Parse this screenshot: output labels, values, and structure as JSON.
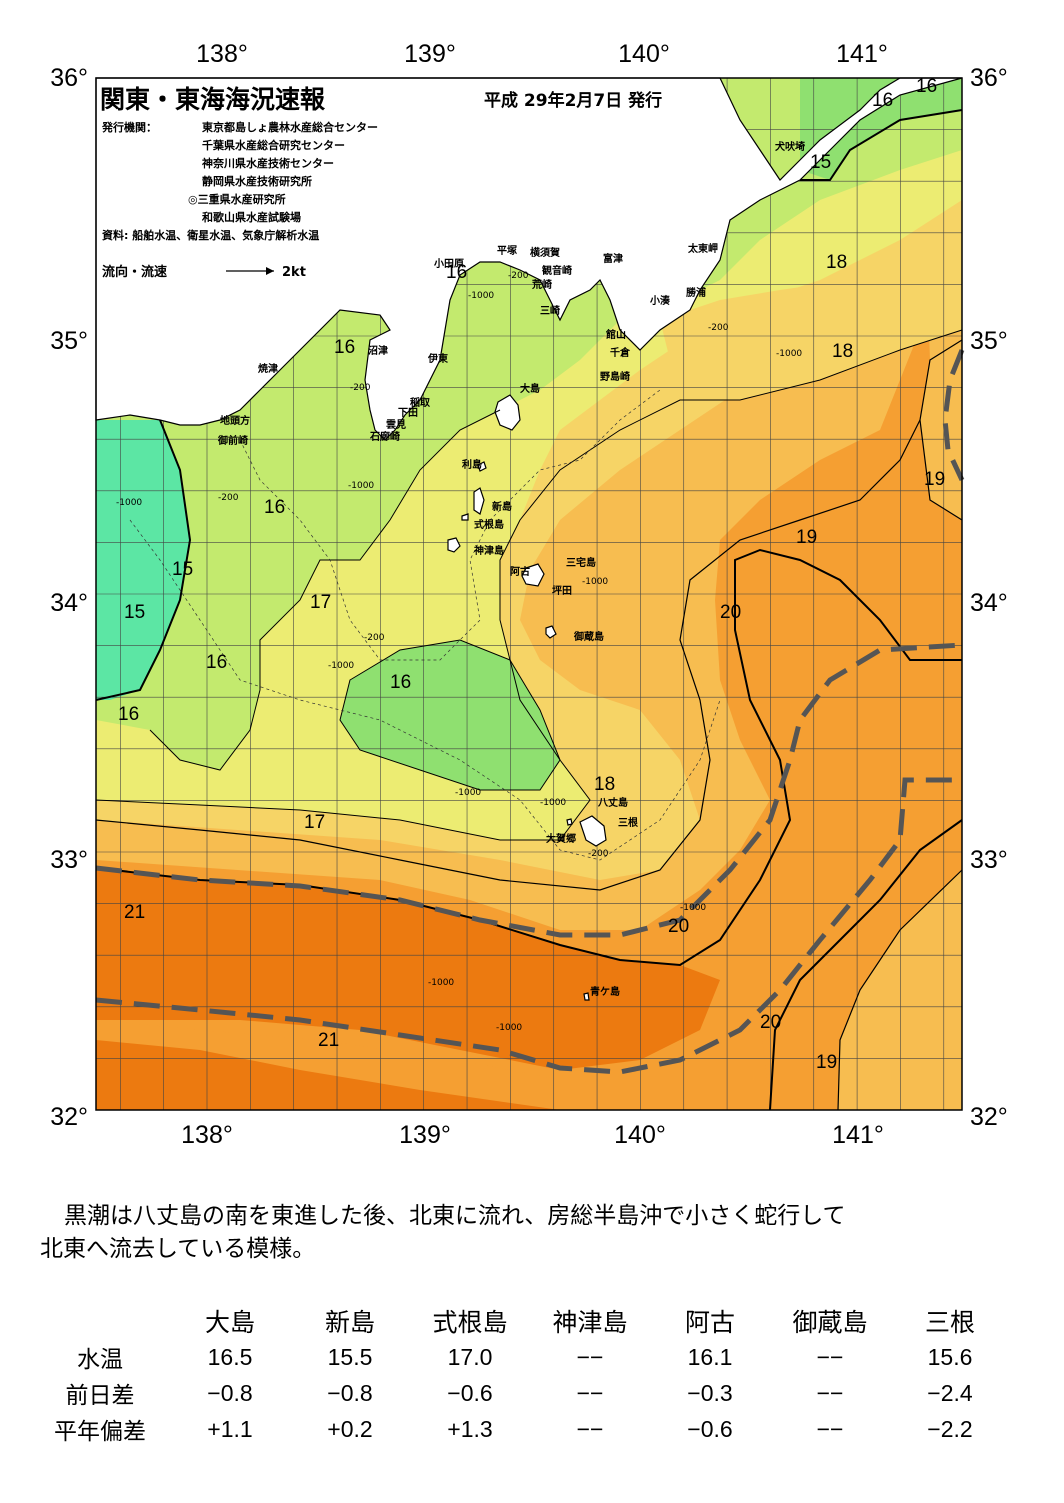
{
  "header": {
    "title": "関東・東海海況速報",
    "date": "平成 29年2月7日 発行",
    "publisher_label": "発行機関：",
    "publishers": [
      "東京都島しょ農林水産総合センター",
      "千葉県水産総合研究センター",
      "神奈川県水産技術センター",
      "静岡県水産技術研究所",
      "◎三重県水産研究所",
      "和歌山県水産試験場"
    ],
    "source": "資料: 船舶水温、衛星水温、気象庁解析水温",
    "current_legend": "流向・流速",
    "current_scale": "2kt"
  },
  "axes": {
    "lon_labels": [
      "138°",
      "139°",
      "140°",
      "141°"
    ],
    "lat_labels": [
      "36°",
      "35°",
      "34°",
      "33°",
      "32°"
    ]
  },
  "colors": {
    "t15": "#5ce6a4",
    "t16": "#8fe070",
    "t17": "#c3ea6e",
    "t18": "#ecec72",
    "t18b": "#f6d466",
    "t19": "#f7bd50",
    "t20": "#f59f32",
    "t21": "#ec7a10",
    "land": "#ffffff",
    "kuroshio_axis": "#555555",
    "contour": "#000000"
  },
  "places": [
    "犬吠埼",
    "太東岬",
    "勝浦",
    "小湊",
    "富津",
    "館山",
    "千倉",
    "野島崎",
    "横須賀",
    "観音崎",
    "平塚",
    "荒崎",
    "三崎",
    "小田原",
    "沼津",
    "伊東",
    "稲取",
    "下田",
    "雲見",
    "石廊崎",
    "焼津",
    "地頭方",
    "御前崎",
    "大島",
    "利島",
    "新島",
    "式根島",
    "神津島",
    "三宅島",
    "阿古",
    "坪田",
    "御蔵島",
    "八丈島",
    "三根",
    "大賀郷",
    "青ケ島"
  ],
  "isotherm_labels": [
    "16",
    "16",
    "15",
    "18",
    "18",
    "19",
    "16",
    "16",
    "16",
    "15",
    "15",
    "17",
    "16",
    "16",
    "16",
    "19",
    "20",
    "18",
    "17",
    "21",
    "20",
    "21",
    "20",
    "19"
  ],
  "depth_labels": [
    "-200",
    "-1000"
  ],
  "summary": {
    "line1": "黒潮は八丈島の南を東進した後、北東に流れ、房総半島沖で小さく蛇行して",
    "line2": "北東へ流去している模様。"
  },
  "table": {
    "stations": [
      "大島",
      "新島",
      "式根島",
      "神津島",
      "阿古",
      "御蔵島",
      "三根"
    ],
    "rows": [
      {
        "label": "水温",
        "values": [
          "16.5",
          "15.5",
          "17.0",
          "−−",
          "16.1",
          "−−",
          "15.6"
        ]
      },
      {
        "label": "前日差",
        "values": [
          "−0.8",
          "−0.8",
          "−0.6",
          "−−",
          "−0.3",
          "−−",
          "−2.4"
        ]
      },
      {
        "label": "平年偏差",
        "values": [
          "+1.1",
          "+0.2",
          "+1.3",
          "−−",
          "−0.6",
          "−−",
          "−2.2"
        ]
      }
    ]
  }
}
